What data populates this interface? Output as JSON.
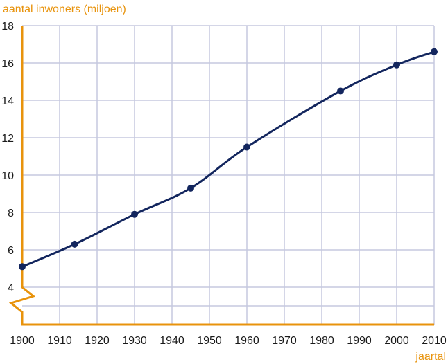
{
  "colors": {
    "axis": "#e8930c",
    "grid": "#c5c9df",
    "line": "#13265e",
    "text": "#1a1a1a"
  },
  "chart_data": {
    "type": "line",
    "ylabel": "aantal inwoners (miljoen)",
    "xlabel": "jaartal",
    "xlim": [
      1900,
      2010
    ],
    "ylim": [
      4,
      18
    ],
    "y_axis_break": true,
    "x_ticks": [
      1900,
      1910,
      1920,
      1930,
      1940,
      1950,
      1960,
      1970,
      1980,
      1990,
      2000,
      2010
    ],
    "y_ticks": [
      4,
      6,
      8,
      10,
      12,
      14,
      16,
      18
    ],
    "grid": true,
    "series": [
      {
        "x": [
          1900,
          1914,
          1930,
          1945,
          1960,
          1985,
          2000,
          2010
        ],
        "y": [
          5.1,
          6.3,
          7.9,
          9.3,
          11.5,
          14.5,
          15.9,
          16.6
        ]
      }
    ]
  }
}
